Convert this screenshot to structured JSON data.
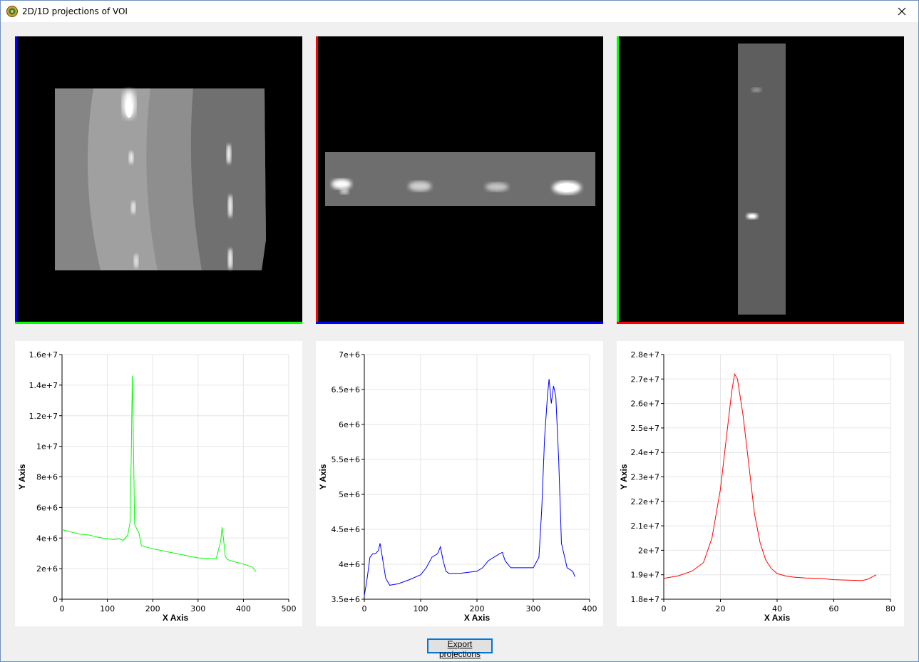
{
  "window": {
    "title": "2D/1D projections of VOI",
    "app_icon": "app-icon",
    "close_icon": "close-icon"
  },
  "projections_2d": [
    {
      "name": "projection-xy",
      "left_edge_color": "#0000ff",
      "bottom_edge_color": "#00ff00"
    },
    {
      "name": "projection-xz",
      "left_edge_color": "#ff0000",
      "bottom_edge_color": "#0000ff"
    },
    {
      "name": "projection-yz",
      "left_edge_color": "#00ff00",
      "bottom_edge_color": "#ff0000"
    }
  ],
  "export_button": {
    "label": "Export projections"
  },
  "chart_data": [
    {
      "type": "line",
      "xlabel": "X Axis",
      "ylabel": "Y Axis",
      "xlim": [
        0,
        500
      ],
      "ylim": [
        0,
        16000000
      ],
      "x_ticks": [
        0,
        100,
        200,
        300,
        400,
        500
      ],
      "x_tick_labels": [
        "0",
        "100",
        "200",
        "300",
        "400",
        "500"
      ],
      "y_ticks": [
        0,
        2000000,
        4000000,
        6000000,
        8000000,
        10000000,
        12000000,
        14000000,
        16000000
      ],
      "y_tick_labels": [
        "0",
        "2e+6",
        "4e+6",
        "6e+6",
        "8e+6",
        "1e+7",
        "1.2e+7",
        "1.4e+7",
        "1.6e+7"
      ],
      "grid": true,
      "color": "#00ff00",
      "x": [
        0,
        20,
        40,
        60,
        80,
        100,
        115,
        125,
        135,
        145,
        150,
        153,
        155,
        157,
        160,
        165,
        170,
        175,
        200,
        250,
        300,
        340,
        350,
        353,
        356,
        360,
        365,
        380,
        400,
        420,
        428
      ],
      "y": [
        4550000,
        4400000,
        4250000,
        4200000,
        4050000,
        3950000,
        3900000,
        3950000,
        3850000,
        4200000,
        5000000,
        10000000,
        14600000,
        11000000,
        4900000,
        4600000,
        4300000,
        3500000,
        3300000,
        3000000,
        2700000,
        2650000,
        3800000,
        4700000,
        4000000,
        2800000,
        2600000,
        2450000,
        2300000,
        2100000,
        1800000
      ]
    },
    {
      "type": "line",
      "xlabel": "X Axis",
      "ylabel": "Y Axis",
      "xlim": [
        0,
        400
      ],
      "ylim": [
        3500000,
        7000000
      ],
      "x_ticks": [
        0,
        100,
        200,
        300,
        400
      ],
      "x_tick_labels": [
        "0",
        "100",
        "200",
        "300",
        "400"
      ],
      "y_ticks": [
        3500000,
        4000000,
        4500000,
        5000000,
        5500000,
        6000000,
        6500000,
        7000000
      ],
      "y_tick_labels": [
        "3.5e+6",
        "4e+6",
        "4.5e+6",
        "5e+6",
        "5.5e+6",
        "6e+6",
        "6.5e+6",
        "7e+6"
      ],
      "grid": true,
      "color": "#0000ff",
      "x": [
        0,
        5,
        10,
        15,
        20,
        25,
        28,
        32,
        38,
        45,
        60,
        80,
        100,
        110,
        120,
        130,
        135,
        140,
        145,
        150,
        170,
        200,
        210,
        220,
        230,
        240,
        245,
        250,
        260,
        300,
        310,
        315,
        320,
        325,
        328,
        332,
        336,
        340,
        345,
        350,
        360,
        370,
        374
      ],
      "y": [
        3550000,
        3800000,
        4100000,
        4150000,
        4150000,
        4200000,
        4300000,
        4100000,
        3800000,
        3700000,
        3720000,
        3780000,
        3850000,
        3950000,
        4100000,
        4150000,
        4250000,
        4050000,
        3900000,
        3870000,
        3870000,
        3900000,
        3950000,
        4050000,
        4100000,
        4150000,
        4170000,
        4050000,
        3950000,
        3950000,
        4100000,
        4800000,
        5800000,
        6400000,
        6650000,
        6300000,
        6550000,
        6400000,
        5500000,
        4300000,
        3950000,
        3900000,
        3820000
      ]
    },
    {
      "type": "line",
      "xlabel": "X Axis",
      "ylabel": "Y Axis",
      "xlim": [
        0,
        80
      ],
      "ylim": [
        18000000,
        28000000
      ],
      "x_ticks": [
        0,
        20,
        40,
        60,
        80
      ],
      "x_tick_labels": [
        "0",
        "20",
        "40",
        "60",
        "80"
      ],
      "y_ticks": [
        18000000,
        19000000,
        20000000,
        21000000,
        22000000,
        23000000,
        24000000,
        25000000,
        26000000,
        27000000,
        28000000
      ],
      "y_tick_labels": [
        "1.8e+7",
        "1.9e+7",
        "2e+7",
        "2.1e+7",
        "2.2e+7",
        "2.3e+7",
        "2.4e+7",
        "2.5e+7",
        "2.6e+7",
        "2.7e+7",
        "2.8e+7"
      ],
      "grid": true,
      "color": "#ff0000",
      "x": [
        0,
        5,
        10,
        14,
        17,
        20,
        22,
        24,
        25,
        26,
        28,
        30,
        32,
        34,
        36,
        38,
        40,
        43,
        46,
        50,
        55,
        60,
        65,
        70,
        72,
        75
      ],
      "y": [
        18850000,
        18950000,
        19150000,
        19500000,
        20500000,
        22500000,
        24500000,
        26500000,
        27200000,
        27000000,
        25500000,
        23500000,
        21500000,
        20300000,
        19600000,
        19250000,
        19050000,
        18950000,
        18900000,
        18870000,
        18850000,
        18800000,
        18780000,
        18760000,
        18820000,
        19000000
      ]
    }
  ]
}
